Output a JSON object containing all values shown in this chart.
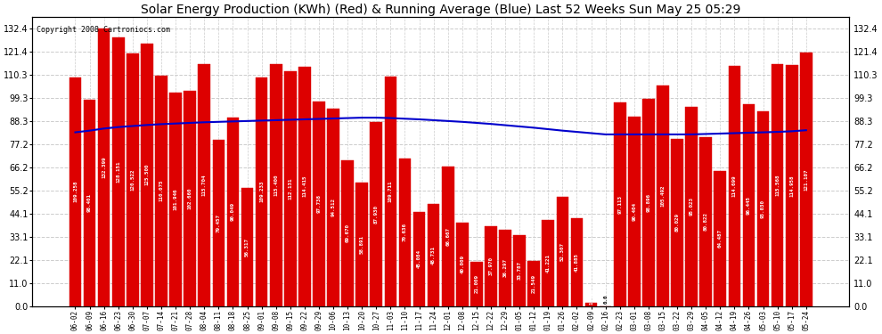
{
  "title": "Solar Energy Production (KWh) (Red) & Running Average (Blue) Last 52 Weeks Sun May 25 05:29",
  "copyright": "Copyright 2008 Cartroniocs.com",
  "bar_color": "#dd0000",
  "avg_line_color": "#0000cc",
  "background_color": "#ffffff",
  "plot_bg_color": "#ffffff",
  "grid_color": "#cccccc",
  "bar_values": [
    109.258,
    98.401,
    132.399,
    128.151,
    120.522,
    125.5,
    110.075,
    101.946,
    102.66,
    115.704,
    79.457,
    90.049,
    56.317,
    109.233,
    115.4,
    112.131,
    114.415,
    97.738,
    94.512,
    69.67,
    58.891,
    87.93,
    109.711,
    70.636,
    45.084,
    48.731,
    66.667,
    40.009,
    21.009,
    37.97,
    36.297,
    33.787,
    21.549,
    41.221,
    52.307,
    41.885,
    1.413,
    0.0,
    97.113,
    90.404,
    98.896,
    105.492,
    80.029,
    95.023,
    80.822,
    64.487,
    114.699,
    96.445,
    93.03,
    115.568,
    114.958,
    121.107
  ],
  "x_labels": [
    "06-02",
    "06-09",
    "06-16",
    "06-23",
    "06-30",
    "07-07",
    "07-14",
    "07-21",
    "07-28",
    "08-04",
    "08-11",
    "08-18",
    "08-25",
    "09-01",
    "09-08",
    "09-15",
    "09-22",
    "09-29",
    "10-06",
    "10-13",
    "10-20",
    "10-27",
    "11-03",
    "11-10",
    "11-17",
    "11-24",
    "12-01",
    "12-08",
    "12-15",
    "12-22",
    "12-29",
    "01-05",
    "01-12",
    "01-19",
    "01-26",
    "02-02",
    "02-09",
    "02-16",
    "02-23",
    "03-01",
    "03-08",
    "03-15",
    "03-22",
    "03-29",
    "04-05",
    "04-12",
    "04-19",
    "04-26",
    "05-03",
    "05-10",
    "05-17",
    "05-24"
  ],
  "avg_line": [
    83.0,
    83.8,
    84.8,
    85.5,
    86.0,
    86.5,
    86.9,
    87.2,
    87.5,
    87.8,
    88.0,
    88.2,
    88.4,
    88.6,
    88.8,
    89.0,
    89.2,
    89.4,
    89.6,
    89.8,
    90.0,
    90.0,
    89.8,
    89.5,
    89.2,
    88.8,
    88.4,
    88.0,
    87.5,
    87.0,
    86.4,
    85.8,
    85.2,
    84.5,
    83.8,
    83.2,
    82.6,
    82.0,
    82.0,
    82.0,
    82.0,
    82.0,
    82.0,
    82.0,
    82.2,
    82.4,
    82.6,
    82.8,
    83.0,
    83.2,
    83.5,
    84.0
  ],
  "y_ticks": [
    0.0,
    11.0,
    22.1,
    33.1,
    44.1,
    55.2,
    66.2,
    77.2,
    88.3,
    99.3,
    110.3,
    121.4,
    132.4
  ],
  "ylim": [
    0.0,
    138.0
  ],
  "title_fontsize": 10,
  "copyright_fontsize": 6
}
